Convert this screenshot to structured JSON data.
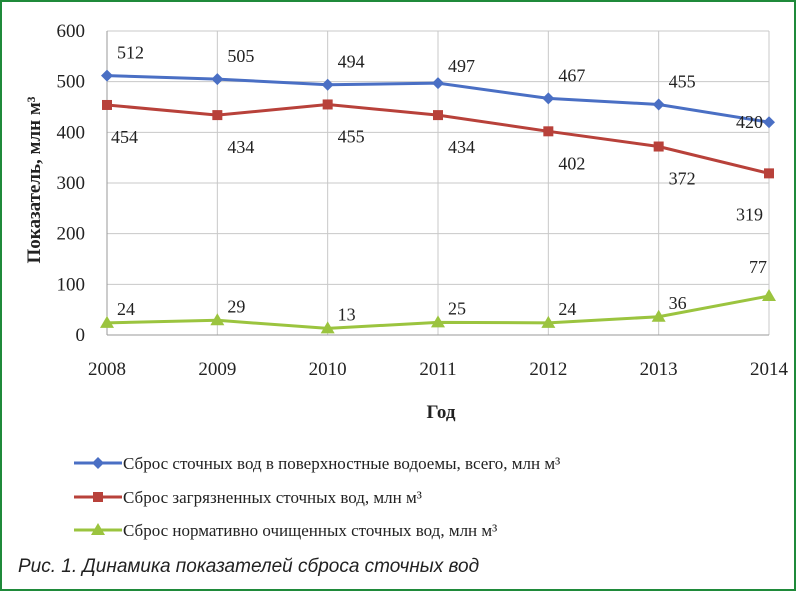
{
  "chart_data": {
    "type": "line",
    "xlabel": "Год",
    "ylabel": "Показатель, млн м³",
    "ylim": [
      0,
      600
    ],
    "yticks": [
      0,
      100,
      200,
      300,
      400,
      500,
      600
    ],
    "categories": [
      "2008",
      "2009",
      "2010",
      "2011",
      "2012",
      "2013",
      "2014"
    ],
    "grid": "vertical and horizontal",
    "legend": "bottom",
    "series": [
      {
        "name": "Сброс сточных вод в поверхностные водоемы, всего, млн м³",
        "color": "#4a6fc4",
        "marker": "diamond",
        "values": [
          512,
          505,
          494,
          497,
          467,
          455,
          420
        ]
      },
      {
        "name": "Сброс  загрязненных сточных вод, млн  м³",
        "color": "#b8413a",
        "marker": "square",
        "values": [
          454,
          434,
          455,
          434,
          402,
          372,
          319
        ]
      },
      {
        "name": "Сброс нормативно очищенных сточных вод, млн  м³",
        "color": "#9bc43f",
        "marker": "triangle",
        "values": [
          24,
          29,
          13,
          25,
          24,
          36,
          77
        ]
      }
    ]
  },
  "caption": "Рис. 1. Динамика показателей сброса сточных вод"
}
